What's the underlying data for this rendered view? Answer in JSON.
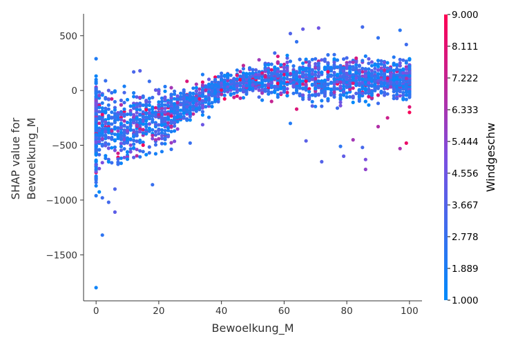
{
  "chart_data": {
    "type": "scatter",
    "title": "",
    "xlabel": "Bewoelkung_M",
    "ylabel_lines": [
      "SHAP value for",
      "Bewoelkung_M"
    ],
    "xlim": [
      -4,
      104
    ],
    "ylim": [
      -1920,
      700
    ],
    "x_ticks": [
      0,
      20,
      40,
      60,
      80,
      100
    ],
    "x_tick_labels": [
      "0",
      "20",
      "40",
      "60",
      "80",
      "100"
    ],
    "y_ticks": [
      500,
      0,
      -500,
      -1000,
      -1500
    ],
    "y_tick_labels": [
      "500",
      "0",
      "−500",
      "−1000",
      "−1500"
    ],
    "grid": false,
    "point_color_low": "#008bfb",
    "point_color_mid": "#7c4fe0",
    "point_color_high": "#ff0052",
    "colorbar": {
      "title": "Windgeschw",
      "min": 1.0,
      "max": 9.0,
      "tick_labels": [
        "9.000",
        "8.111",
        "7.222",
        "6.333",
        "5.444",
        "4.556",
        "3.667",
        "2.778",
        "1.889",
        "1.000"
      ]
    },
    "trend": {
      "x": [
        0,
        10,
        20,
        30,
        40,
        50,
        60,
        70,
        80,
        90,
        100
      ],
      "y": [
        -330,
        -330,
        -240,
        -120,
        20,
        90,
        110,
        110,
        110,
        100,
        110
      ],
      "spread": [
        230,
        210,
        160,
        100,
        70,
        80,
        110,
        130,
        120,
        120,
        110
      ]
    },
    "points": [
      {
        "x": 0,
        "y": 290,
        "c": 2.0
      },
      {
        "x": 0,
        "y": 80,
        "c": 1.8
      },
      {
        "x": 0,
        "y": -1800,
        "c": 1.5
      },
      {
        "x": 0,
        "y": -960,
        "c": 2.2
      },
      {
        "x": 0,
        "y": -870,
        "c": 1.6
      },
      {
        "x": 2,
        "y": -1320,
        "c": 2.5
      },
      {
        "x": 2,
        "y": -980,
        "c": 3.0
      },
      {
        "x": 4,
        "y": -1020,
        "c": 3.2
      },
      {
        "x": 6,
        "y": -1110,
        "c": 4.0
      },
      {
        "x": 6,
        "y": -900,
        "c": 3.5
      },
      {
        "x": 18,
        "y": -860,
        "c": 2.8
      },
      {
        "x": 12,
        "y": 170,
        "c": 3.4
      },
      {
        "x": 14,
        "y": 180,
        "c": 3.8
      },
      {
        "x": 62,
        "y": 520,
        "c": 3.6
      },
      {
        "x": 66,
        "y": 560,
        "c": 4.2
      },
      {
        "x": 71,
        "y": 570,
        "c": 4.6
      },
      {
        "x": 85,
        "y": 580,
        "c": 3.2
      },
      {
        "x": 90,
        "y": 480,
        "c": 2.6
      },
      {
        "x": 97,
        "y": 550,
        "c": 2.4
      },
      {
        "x": 99,
        "y": 420,
        "c": 3.0
      },
      {
        "x": 67,
        "y": -460,
        "c": 3.9
      },
      {
        "x": 72,
        "y": -650,
        "c": 3.7
      },
      {
        "x": 79,
        "y": -600,
        "c": 4.1
      },
      {
        "x": 85,
        "y": -520,
        "c": 3.3
      },
      {
        "x": 86,
        "y": -720,
        "c": 5.6
      },
      {
        "x": 86,
        "y": -630,
        "c": 5.0
      },
      {
        "x": 97,
        "y": -530,
        "c": 6.4
      },
      {
        "x": 99,
        "y": -480,
        "c": 8.4
      },
      {
        "x": 78,
        "y": -510,
        "c": 2.5
      },
      {
        "x": 62,
        "y": -300,
        "c": 2.1
      },
      {
        "x": 82,
        "y": -450,
        "c": 6.2
      },
      {
        "x": 90,
        "y": -330,
        "c": 6.6
      },
      {
        "x": 100,
        "y": -200,
        "c": 8.8
      },
      {
        "x": 100,
        "y": -150,
        "c": 8.0
      },
      {
        "x": 93,
        "y": -250,
        "c": 7.4
      },
      {
        "x": 64,
        "y": -170,
        "c": 7.9
      },
      {
        "x": 56,
        "y": -100,
        "c": 7.2
      },
      {
        "x": 46,
        "y": -70,
        "c": 6.9
      },
      {
        "x": 52,
        "y": 280,
        "c": 6.1
      },
      {
        "x": 58,
        "y": 250,
        "c": 7.0
      }
    ]
  }
}
